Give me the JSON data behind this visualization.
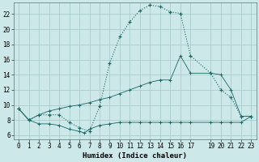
{
  "xlabel": "Humidex (Indice chaleur)",
  "bg_color": "#cce8e8",
  "grid_color": "#aacccc",
  "line_color": "#1a6666",
  "xlim": [
    -0.5,
    23.5
  ],
  "ylim": [
    5.5,
    23.5
  ],
  "xticks": [
    0,
    1,
    2,
    3,
    4,
    5,
    6,
    7,
    8,
    9,
    10,
    11,
    12,
    13,
    14,
    15,
    16,
    17,
    19,
    20,
    21,
    22,
    23
  ],
  "yticks": [
    6,
    8,
    10,
    12,
    14,
    16,
    18,
    20,
    22
  ],
  "curve1_x": [
    0,
    1,
    2,
    3,
    4,
    5,
    6,
    7,
    8,
    9,
    10,
    11,
    12,
    13,
    14,
    15,
    16,
    17,
    19,
    20,
    21,
    22,
    23
  ],
  "curve1_y": [
    9.5,
    8.0,
    8.7,
    8.7,
    8.7,
    7.7,
    7.0,
    6.5,
    9.8,
    15.5,
    19.0,
    21.0,
    22.5,
    23.2,
    23.0,
    22.3,
    22.1,
    16.5,
    14.2,
    12.0,
    11.0,
    8.5,
    8.5
  ],
  "curve2_x": [
    0,
    1,
    2,
    3,
    4,
    5,
    6,
    6.5,
    7,
    8,
    9,
    10,
    11,
    12,
    13,
    14,
    15,
    16,
    17,
    19,
    20,
    21,
    22,
    23
  ],
  "curve2_y": [
    9.5,
    8.0,
    7.5,
    7.5,
    7.3,
    6.8,
    6.5,
    6.3,
    6.8,
    7.3,
    7.5,
    7.7,
    7.7,
    7.7,
    7.7,
    7.7,
    7.7,
    7.7,
    7.7,
    7.7,
    7.7,
    7.7,
    7.7,
    8.5
  ],
  "curve3_x": [
    0,
    1,
    2,
    3,
    4,
    5,
    6,
    7,
    8,
    9,
    10,
    11,
    12,
    13,
    14,
    15,
    16,
    17,
    19,
    20,
    21,
    22,
    23
  ],
  "curve3_y": [
    9.5,
    8.0,
    8.7,
    9.2,
    9.5,
    9.8,
    10.0,
    10.3,
    10.7,
    11.0,
    11.5,
    12.0,
    12.5,
    13.0,
    13.3,
    13.3,
    16.5,
    14.2,
    14.2,
    14.0,
    12.0,
    8.5,
    8.5
  ]
}
